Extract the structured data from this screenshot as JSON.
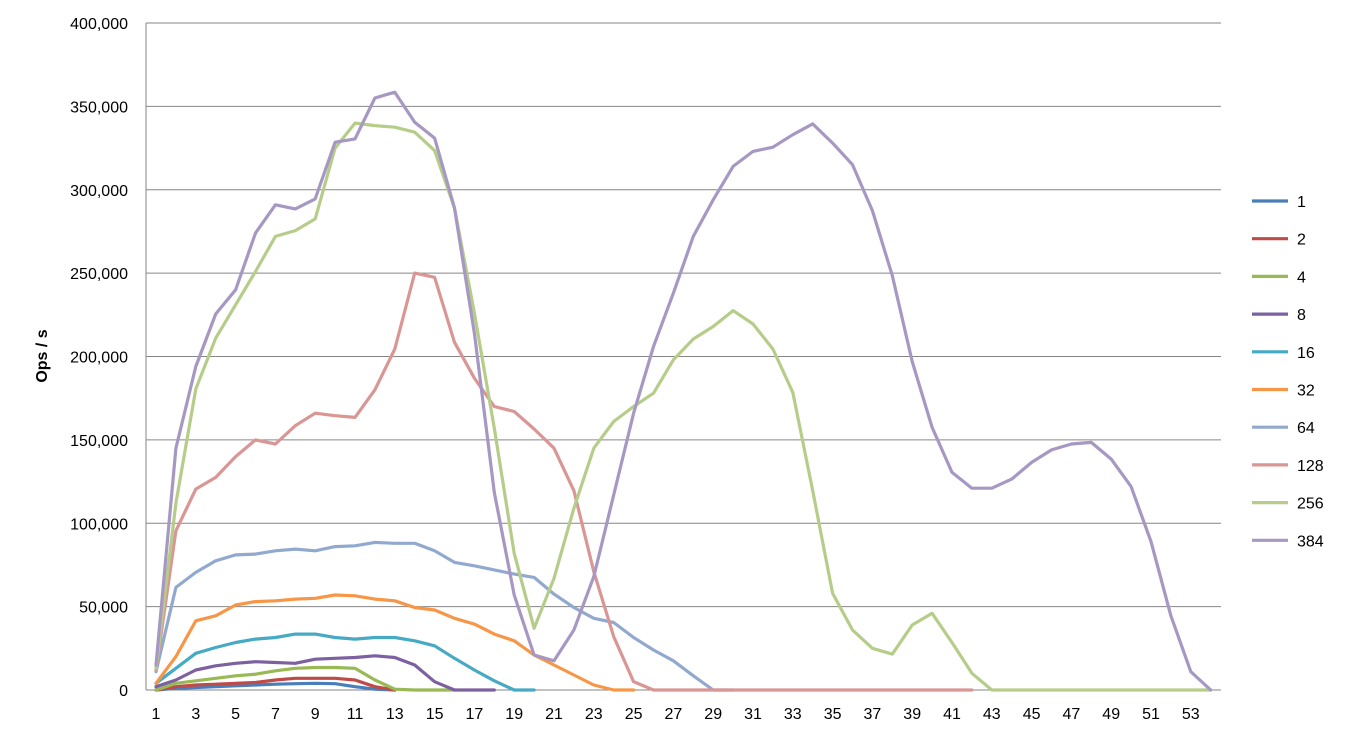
{
  "chart_data": {
    "type": "line",
    "title": "",
    "xlabel": "",
    "ylabel": "Ops / s",
    "xlim": [
      1,
      54
    ],
    "ylim": [
      0,
      400000
    ],
    "y_ticks": [
      0,
      50000,
      100000,
      150000,
      200000,
      250000,
      300000,
      350000,
      400000
    ],
    "y_tick_labels": [
      "0",
      "50,000",
      "100,000",
      "150,000",
      "200,000",
      "250,000",
      "300,000",
      "350,000",
      "400,000"
    ],
    "x_tick_labels": [
      "1",
      "3",
      "5",
      "7",
      "9",
      "11",
      "13",
      "15",
      "17",
      "19",
      "21",
      "23",
      "25",
      "27",
      "29",
      "31",
      "33",
      "35",
      "37",
      "39",
      "41",
      "43",
      "45",
      "47",
      "49",
      "51",
      "53"
    ],
    "grid": "horizontal",
    "legend_position": "right",
    "series": [
      {
        "name": "1",
        "color": "#4a7ebb",
        "x": [
          1,
          2,
          3,
          4,
          5,
          6,
          7,
          8,
          9,
          10,
          11,
          12,
          13
        ],
        "values": [
          0,
          1000,
          1500,
          2000,
          2500,
          3000,
          3500,
          3800,
          4000,
          3800,
          2000,
          500,
          0
        ]
      },
      {
        "name": "2",
        "color": "#be4b48",
        "x": [
          1,
          2,
          3,
          4,
          5,
          6,
          7,
          8,
          9,
          10,
          11,
          12,
          13
        ],
        "values": [
          0,
          2000,
          3000,
          3500,
          4000,
          4500,
          6000,
          7000,
          7000,
          7000,
          6000,
          2000,
          0
        ]
      },
      {
        "name": "4",
        "color": "#98b954",
        "x": [
          1,
          2,
          3,
          4,
          5,
          6,
          7,
          8,
          9,
          10,
          11,
          12,
          13,
          14,
          15,
          16
        ],
        "values": [
          0,
          4000,
          5500,
          7000,
          8500,
          9500,
          11500,
          13000,
          13500,
          13500,
          13000,
          6000,
          500,
          0,
          0,
          0
        ]
      },
      {
        "name": "8",
        "color": "#7d60a0",
        "x": [
          1,
          2,
          3,
          4,
          5,
          6,
          7,
          8,
          9,
          10,
          11,
          12,
          13,
          14,
          15,
          16,
          17,
          18
        ],
        "values": [
          2000,
          6000,
          12000,
          14500,
          16000,
          17000,
          16500,
          16000,
          18500,
          19000,
          19500,
          20500,
          19500,
          15000,
          5000,
          0,
          0,
          0
        ]
      },
      {
        "name": "16",
        "color": "#46aac5",
        "x": [
          1,
          2,
          3,
          4,
          5,
          6,
          7,
          8,
          9,
          10,
          11,
          12,
          13,
          14,
          15,
          16,
          17,
          18,
          19,
          20
        ],
        "values": [
          4000,
          13000,
          22000,
          25500,
          28500,
          30500,
          31500,
          33500,
          33500,
          31500,
          30500,
          31500,
          31500,
          29500,
          26500,
          19000,
          12000,
          5500,
          0,
          0
        ]
      },
      {
        "name": "32",
        "color": "#f79646",
        "x": [
          1,
          2,
          3,
          4,
          5,
          6,
          7,
          8,
          9,
          10,
          11,
          12,
          13,
          14,
          15,
          16,
          17,
          18,
          19,
          20,
          21,
          22,
          23,
          24,
          25
        ],
        "values": [
          4000,
          20000,
          41500,
          44500,
          51000,
          53000,
          53500,
          54500,
          55000,
          57000,
          56500,
          54500,
          53500,
          49500,
          48000,
          43000,
          39500,
          33500,
          29500,
          21000,
          15000,
          9000,
          3000,
          0,
          0
        ]
      },
      {
        "name": "64",
        "color": "#92a9cf",
        "x": [
          1,
          2,
          3,
          4,
          5,
          6,
          7,
          8,
          9,
          10,
          11,
          12,
          13,
          14,
          15,
          16,
          17,
          18,
          19,
          20,
          21,
          22,
          23,
          24,
          25,
          26,
          27,
          28,
          29,
          30
        ],
        "values": [
          11000,
          61500,
          70500,
          77500,
          81000,
          81500,
          83500,
          84500,
          83500,
          86000,
          86500,
          88500,
          88000,
          88000,
          83500,
          76500,
          74500,
          72000,
          69500,
          67500,
          57500,
          49500,
          43000,
          40500,
          31500,
          24000,
          17500,
          8500,
          0,
          0
        ]
      },
      {
        "name": "128",
        "color": "#d99694",
        "x": [
          1,
          2,
          3,
          4,
          5,
          6,
          7,
          8,
          9,
          10,
          11,
          12,
          13,
          14,
          15,
          16,
          17,
          18,
          19,
          20,
          21,
          22,
          23,
          24,
          25,
          26,
          27,
          28,
          29,
          30,
          31,
          32,
          33,
          34,
          35,
          36,
          37,
          38,
          39,
          40,
          41,
          42
        ],
        "values": [
          12000,
          95500,
          120500,
          127500,
          140000,
          150000,
          147500,
          158500,
          166000,
          164500,
          163500,
          180000,
          204500,
          250000,
          247500,
          208500,
          187000,
          170000,
          167000,
          156500,
          145000,
          119500,
          71000,
          32000,
          5000,
          0,
          0,
          0,
          0,
          0,
          0,
          0,
          0,
          0,
          0,
          0,
          0,
          0,
          0,
          0,
          0,
          0
        ]
      },
      {
        "name": "256",
        "color": "#b6cd8a",
        "x": [
          1,
          2,
          3,
          4,
          5,
          6,
          7,
          8,
          9,
          10,
          11,
          12,
          13,
          14,
          15,
          16,
          17,
          18,
          19,
          20,
          21,
          22,
          23,
          24,
          25,
          26,
          27,
          28,
          29,
          30,
          31,
          32,
          33,
          34,
          35,
          36,
          37,
          38,
          39,
          40,
          41,
          42,
          43,
          44,
          45,
          46,
          47,
          48,
          49,
          50,
          51,
          52,
          53,
          54
        ],
        "values": [
          13000,
          112000,
          180500,
          211000,
          231000,
          251000,
          272000,
          275500,
          282500,
          325000,
          340000,
          338500,
          337500,
          334500,
          323500,
          289000,
          226000,
          157000,
          82000,
          37000,
          67000,
          109000,
          145000,
          161000,
          170000,
          178000,
          198000,
          210500,
          218000,
          227500,
          219500,
          204500,
          178500,
          119500,
          58000,
          36000,
          25000,
          21500,
          39000,
          46000,
          28500,
          10000,
          0,
          0,
          0,
          0,
          0,
          0,
          0,
          0,
          0,
          0,
          0,
          0
        ]
      },
      {
        "name": "384",
        "color": "#a698c2",
        "x": [
          1,
          2,
          3,
          4,
          5,
          6,
          7,
          8,
          9,
          10,
          11,
          12,
          13,
          14,
          15,
          16,
          17,
          18,
          19,
          20,
          21,
          22,
          23,
          24,
          25,
          26,
          27,
          28,
          29,
          30,
          31,
          32,
          33,
          34,
          35,
          36,
          37,
          38,
          39,
          40,
          41,
          42,
          43,
          44,
          45,
          46,
          47,
          48,
          49,
          50,
          51,
          52,
          53,
          54
        ],
        "values": [
          15000,
          145000,
          194000,
          225500,
          240000,
          274000,
          291000,
          288500,
          294500,
          328500,
          330500,
          355000,
          358500,
          340500,
          331000,
          289000,
          214000,
          118500,
          57000,
          21000,
          17500,
          36000,
          68000,
          117000,
          166000,
          206000,
          238000,
          272000,
          294000,
          314000,
          323000,
          325500,
          333000,
          339500,
          328000,
          315000,
          287500,
          248500,
          197000,
          157500,
          130500,
          121000,
          121000,
          126500,
          136500,
          144000,
          147500,
          148500,
          138500,
          122000,
          89000,
          44500,
          11000,
          0
        ]
      }
    ]
  }
}
